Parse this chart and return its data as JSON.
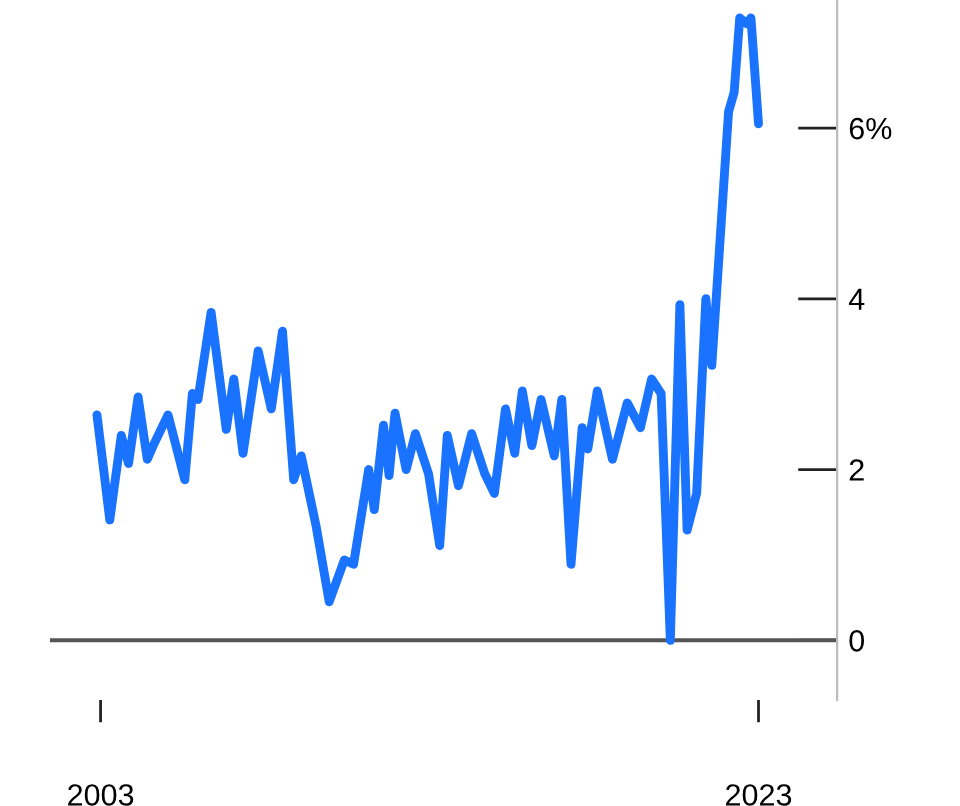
{
  "chart_data": {
    "type": "line",
    "series": [
      {
        "color": "#1a73ff",
        "x": [
          2002.89,
          2003.28,
          2003.63,
          2003.85,
          2004.14,
          2004.42,
          2004.6,
          2005.05,
          2005.56,
          2005.79,
          2005.96,
          2006.36,
          2006.82,
          2007.05,
          2007.33,
          2007.79,
          2008.19,
          2008.53,
          2008.87,
          2009.1,
          2009.55,
          2009.95,
          2010.41,
          2010.69,
          2011.15,
          2011.32,
          2011.6,
          2011.77,
          2011.95,
          2012.29,
          2012.57,
          2012.97,
          2013.31,
          2013.54,
          2013.88,
          2014.28,
          2014.68,
          2014.97,
          2015.31,
          2015.59,
          2015.82,
          2016.11,
          2016.39,
          2016.79,
          2017.02,
          2017.3,
          2017.64,
          2017.81,
          2018.1,
          2018.56,
          2019.01,
          2019.41,
          2019.75,
          2020.04,
          2020.32,
          2020.61,
          2020.83,
          2021.12,
          2021.4,
          2021.58,
          2022.09,
          2022.26,
          2022.43,
          2022.66,
          2022.77,
          2023.0
        ],
        "values": [
          2.64,
          1.41,
          2.4,
          2.07,
          2.85,
          2.12,
          2.28,
          2.64,
          1.88,
          2.89,
          2.82,
          3.84,
          2.47,
          3.06,
          2.19,
          3.39,
          2.71,
          3.62,
          1.88,
          2.16,
          1.34,
          0.45,
          0.94,
          0.89,
          2.0,
          1.53,
          2.52,
          1.93,
          2.66,
          2.0,
          2.42,
          1.95,
          1.11,
          2.4,
          1.81,
          2.42,
          1.95,
          1.72,
          2.71,
          2.19,
          2.92,
          2.28,
          2.82,
          2.16,
          2.82,
          0.89,
          2.49,
          2.24,
          2.92,
          2.12,
          2.78,
          2.49,
          3.06,
          2.89,
          0.0,
          3.93,
          1.29,
          1.72,
          4.0,
          3.22,
          6.19,
          6.42,
          7.29,
          7.22,
          7.29,
          6.05
        ]
      }
    ],
    "xlim": [
      2001.46,
      2025.39
    ],
    "xticks": [
      2003,
      2023
    ],
    "ylim": [
      -0.7,
      7.5
    ],
    "yticks": [
      0,
      2,
      4,
      {
        "value": 6,
        "label": "6%"
      }
    ],
    "ref_lines": [
      {
        "axis": "y",
        "value": 0,
        "color": "#555555"
      }
    ],
    "grid": false,
    "legend": false,
    "marker": "none",
    "line_style": "solid"
  }
}
